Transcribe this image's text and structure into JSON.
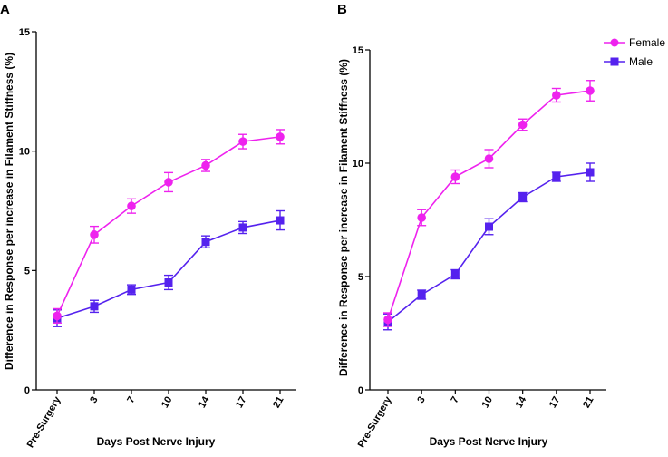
{
  "colors": {
    "female": "#ee22ee",
    "male": "#5522ee",
    "axis": "#000000"
  },
  "legend": {
    "female_label": "Female",
    "male_label": "Male",
    "position": "top-right"
  },
  "chart_data": [
    {
      "panel": "A",
      "type": "line",
      "categories": [
        "Pre-Surgery",
        "3",
        "7",
        "10",
        "14",
        "17",
        "21"
      ],
      "xlabel": "Days Post Nerve Injury",
      "ylabel": "Difference in Response per increase in Filament Stiffness (%)",
      "ylim": [
        0,
        15
      ],
      "yticks": [
        0,
        5,
        10,
        15
      ],
      "series": [
        {
          "name": "Female",
          "values": [
            3.1,
            6.5,
            7.7,
            8.7,
            9.4,
            10.4,
            10.6
          ],
          "errors": [
            0.3,
            0.35,
            0.3,
            0.4,
            0.25,
            0.3,
            0.3
          ]
        },
        {
          "name": "Male",
          "values": [
            3.0,
            3.5,
            4.2,
            4.5,
            6.2,
            6.8,
            7.1
          ],
          "errors": [
            0.35,
            0.25,
            0.2,
            0.3,
            0.25,
            0.25,
            0.4
          ]
        }
      ]
    },
    {
      "panel": "B",
      "type": "line",
      "categories": [
        "Pre-Surgery",
        "3",
        "7",
        "10",
        "14",
        "17",
        "21"
      ],
      "xlabel": "Days Post Nerve Injury",
      "ylabel": "Difference in Response per increase in Filament Stiffness (%)",
      "ylim": [
        0,
        15
      ],
      "yticks": [
        0,
        5,
        10,
        15
      ],
      "series": [
        {
          "name": "Female",
          "values": [
            3.1,
            7.6,
            9.4,
            10.2,
            11.7,
            13.0,
            13.2
          ],
          "errors": [
            0.3,
            0.35,
            0.3,
            0.4,
            0.25,
            0.3,
            0.45
          ]
        },
        {
          "name": "Male",
          "values": [
            3.0,
            4.2,
            5.1,
            7.2,
            8.5,
            9.4,
            9.6
          ],
          "errors": [
            0.35,
            0.2,
            0.2,
            0.35,
            0.2,
            0.2,
            0.4
          ]
        }
      ]
    }
  ]
}
